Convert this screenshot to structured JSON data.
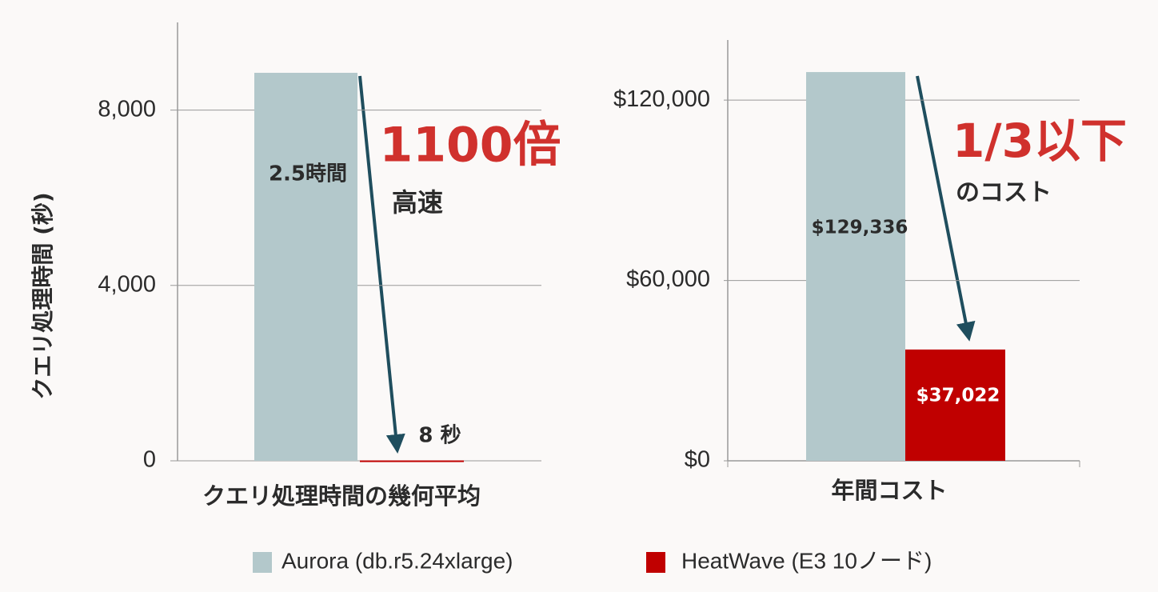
{
  "chart_data": [
    {
      "type": "bar",
      "y_label": "クエリ処理時間 (秒)",
      "x_label": "クエリ処理時間の幾何平均",
      "ylim": [
        0,
        10000
      ],
      "yticks": [
        0,
        {
          "value": 4000,
          "label": "4,000"
        },
        {
          "value": 8000,
          "label": "8,000"
        }
      ],
      "grid": true,
      "series": [
        {
          "name": "Aurora (db.r5.24xlarge)",
          "color": "#b3c8cb",
          "values": [
            8850
          ],
          "value_labels": [
            "2.5時間"
          ]
        },
        {
          "name": "HeatWave (E3 10ノード)",
          "color": "#c00000",
          "values": [
            8
          ],
          "value_labels": [
            "8 秒"
          ]
        }
      ],
      "annotations": [
        "1100倍",
        "高速"
      ]
    },
    {
      "type": "bar",
      "x_label": "年間コスト",
      "ylim": [
        0,
        140000
      ],
      "yticks": [
        {
          "value": 0,
          "label": "$0"
        },
        {
          "value": 60000,
          "label": "$60,000"
        },
        {
          "value": 120000,
          "label": "$120,000"
        }
      ],
      "grid": true,
      "series": [
        {
          "color": "#b3c8cb",
          "values": [
            129336
          ],
          "value_labels": [
            "$129,336"
          ]
        },
        {
          "color": "#c00000",
          "values": [
            37022
          ],
          "value_labels": [
            "$37,022"
          ]
        }
      ],
      "annotations": [
        "1/3以下",
        "のコスト"
      ]
    }
  ]
}
